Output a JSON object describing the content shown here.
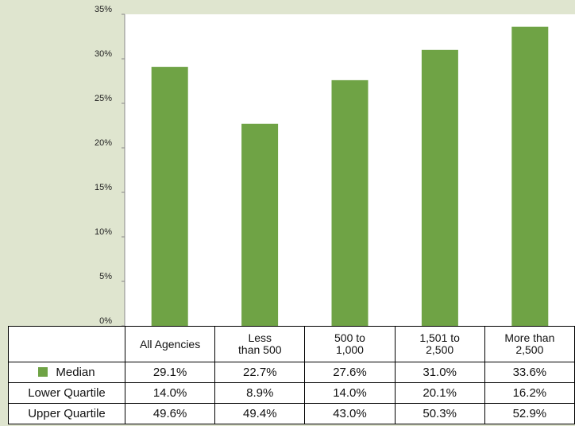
{
  "chart_data": {
    "type": "bar",
    "categories": [
      "All Agencies",
      "Less\nthan 500",
      "500 to\n1,000",
      "1,501 to\n2,500",
      "More than\n2,500"
    ],
    "series": [
      {
        "name": "Median",
        "color": "#6fa345",
        "values": [
          29.1,
          22.7,
          27.6,
          31.0,
          33.6
        ],
        "value_labels": [
          "29.1%",
          "22.7%",
          "27.6%",
          "31.0%",
          "33.6%"
        ]
      }
    ],
    "ylim": [
      0,
      35
    ],
    "yticks": [
      {
        "value": 0,
        "label": "0%"
      },
      {
        "value": 5,
        "label": "5%"
      },
      {
        "value": 10,
        "label": "10%"
      },
      {
        "value": 15,
        "label": "15%"
      },
      {
        "value": 20,
        "label": "20%"
      },
      {
        "value": 25,
        "label": "25%"
      },
      {
        "value": 30,
        "label": "30%"
      },
      {
        "value": 35,
        "label": "35%"
      }
    ],
    "grid": false
  },
  "table": {
    "rows": [
      {
        "name": "Lower Quartile",
        "cells": [
          "14.0%",
          "8.9%",
          "14.0%",
          "20.1%",
          "16.2%"
        ]
      },
      {
        "name": "Upper Quartile",
        "cells": [
          "49.6%",
          "49.4%",
          "43.0%",
          "50.3%",
          "52.9%"
        ]
      }
    ]
  }
}
